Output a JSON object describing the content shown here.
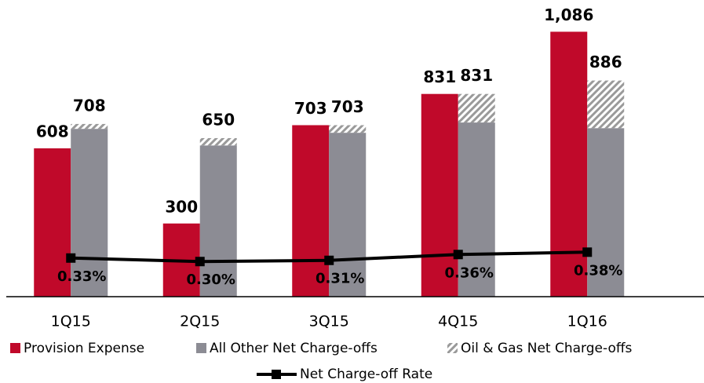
{
  "chart_data": {
    "type": "bar",
    "categories": [
      "1Q15",
      "2Q15",
      "3Q15",
      "4Q15",
      "1Q16"
    ],
    "series": [
      {
        "name": "Provision Expense",
        "color": "#c0092a",
        "stack": "a",
        "values": [
          608,
          300,
          703,
          831,
          1086
        ],
        "value_labels": [
          "608",
          "300",
          "703",
          "831",
          "1,086"
        ]
      },
      {
        "name": "All Other Net Charge-offs",
        "color": "#8c8c94",
        "stack": "b",
        "values": [
          688,
          620,
          672,
          714,
          691
        ]
      },
      {
        "name": "Oil & Gas Net Charge-offs",
        "color": "#9a9a9a",
        "pattern": "hatch",
        "stack": "b",
        "values": [
          20,
          30,
          31,
          117,
          195
        ]
      },
      {
        "name": "Net Charge-off Rate",
        "type": "line",
        "axis": "y2",
        "color": "#000000",
        "values": [
          0.33,
          0.3,
          0.31,
          0.36,
          0.38
        ],
        "value_labels": [
          "0.33%",
          "0.30%",
          "0.31%",
          "0.36%",
          "0.38%"
        ]
      }
    ],
    "totals": [
      708,
      650,
      703,
      831,
      886
    ],
    "ylim": [
      0,
      1200
    ],
    "y2lim": [
      0,
      2.5
    ]
  }
}
